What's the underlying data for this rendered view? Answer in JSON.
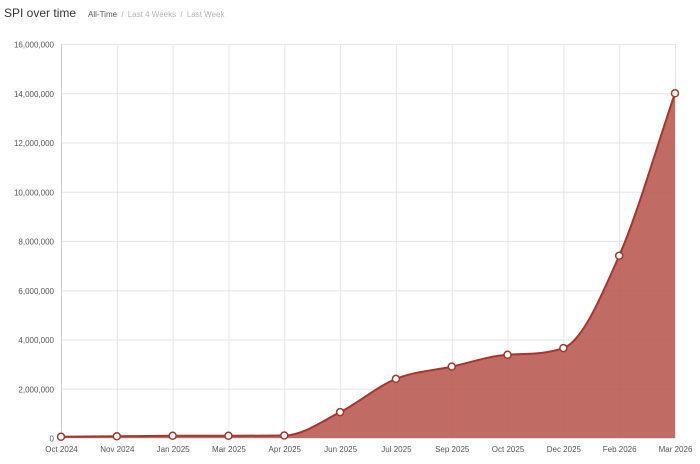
{
  "header": {
    "title": "SPI over time",
    "tabs": [
      {
        "label": "All-Time",
        "active": true
      },
      {
        "label": "Last 4 Weeks",
        "active": false
      },
      {
        "label": "Last Week",
        "active": false
      }
    ],
    "separator": "/"
  },
  "colors": {
    "fill": "#b95b52",
    "line": "#a6362c",
    "grid": "#e6e6e6",
    "text": "#555555"
  },
  "chart_data": {
    "type": "area",
    "title": "SPI over time",
    "xlabel": "",
    "ylabel": "",
    "x": [
      "Oct 2024",
      "Nov 2024",
      "Jan 2025",
      "Mar 2025",
      "Apr 2025",
      "Jun 2025",
      "Jul 2025",
      "Sep 2025",
      "Oct 2025",
      "Dec 2025",
      "Feb 2026",
      "Mar 2026"
    ],
    "values": [
      50000,
      70000,
      90000,
      90000,
      100000,
      1050000,
      2400000,
      2900000,
      3380000,
      3650000,
      7400000,
      14000000
    ],
    "ylim": [
      0,
      16000000
    ],
    "yticks": [
      0,
      2000000,
      4000000,
      6000000,
      8000000,
      10000000,
      12000000,
      14000000,
      16000000
    ],
    "ytick_labels": [
      "0",
      "2,000,000",
      "4,000,000",
      "6,000,000",
      "8,000,000",
      "10,000,000",
      "12,000,000",
      "14,000,000",
      "16,000,000"
    ],
    "grid": true,
    "legend": "none"
  }
}
